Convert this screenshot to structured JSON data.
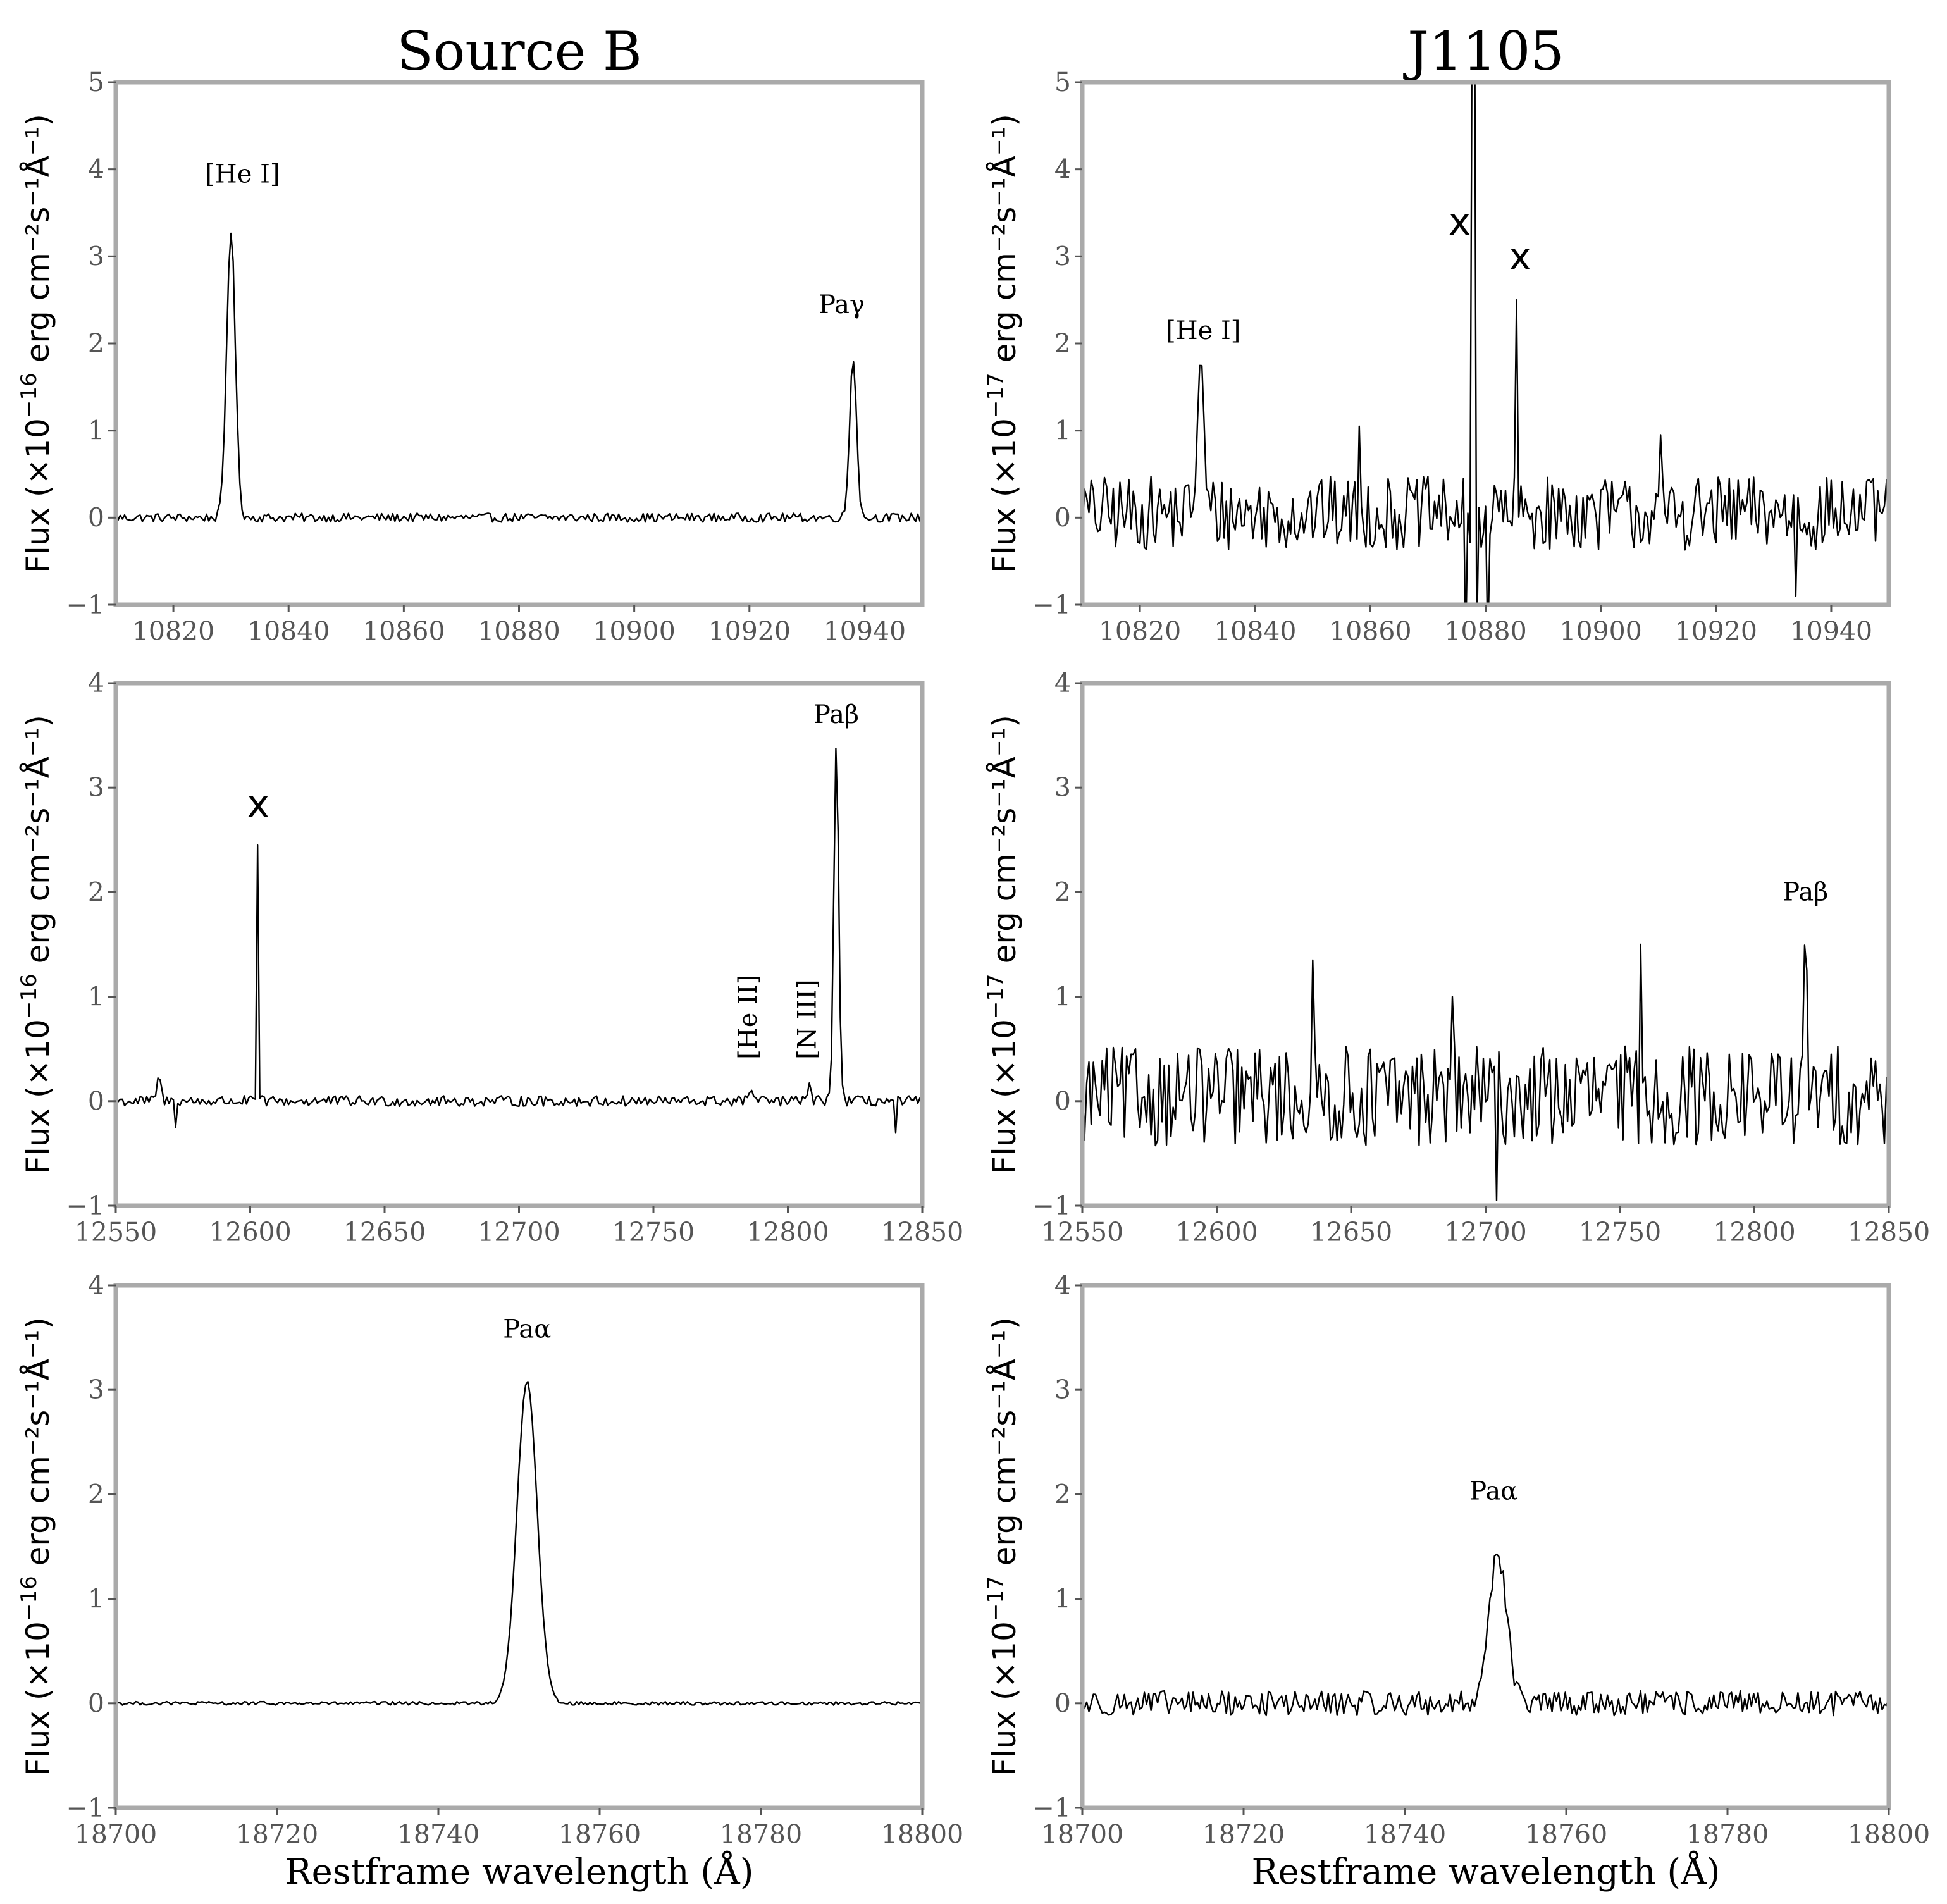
{
  "column_titles": [
    "Source B",
    "J1105"
  ],
  "xlabel": "Restframe wavelength (Å)",
  "ylabel_base": "Flux (×10",
  "ylabel_exp_left": "−16",
  "ylabel_exp_right": "−17",
  "ylabel_rest": " erg cm⁻²s⁻¹Å⁻¹)",
  "chart_data": [
    {
      "type": "line",
      "panel": "Source B, row 1",
      "xlim": [
        10810,
        10950
      ],
      "ylim": [
        -1,
        5
      ],
      "xticks": [
        10820,
        10840,
        10860,
        10880,
        10900,
        10920,
        10940
      ],
      "yticks": [
        -1,
        0,
        1,
        2,
        3,
        4,
        5
      ],
      "ylabel": "Flux (×10^-16 erg cm^-2 s^-1 Å^-1)",
      "baseline": 0.0,
      "noise": 0.03,
      "lines": [
        {
          "center": 10830.0,
          "amp": 3.3,
          "sigma": 0.75,
          "label": "[He I]",
          "label_x": 10832,
          "label_y": 3.85
        },
        {
          "center": 10938.0,
          "amp": 1.85,
          "sigma": 0.6,
          "label": "Paγ",
          "label_x": 10936,
          "label_y": 2.35
        }
      ],
      "spikes": [],
      "markers": []
    },
    {
      "type": "line",
      "panel": "J1105, row 1",
      "xlim": [
        10810,
        10950
      ],
      "ylim": [
        -1,
        5
      ],
      "xticks": [
        10820,
        10840,
        10860,
        10880,
        10900,
        10920,
        10940
      ],
      "yticks": [
        -1,
        0,
        1,
        2,
        3,
        4,
        5
      ],
      "ylabel": "Flux (×10^-17 erg cm^-2 s^-1 Å^-1)",
      "baseline": 0.05,
      "noise": 0.25,
      "lines": [
        {
          "center": 10830.5,
          "amp": 1.6,
          "sigma": 0.6,
          "label": "[He I]",
          "label_x": 10831,
          "label_y": 2.05
        }
      ],
      "spikes": [
        {
          "x": 10877.6,
          "y": 6.5
        },
        {
          "x": 10877.9,
          "y": 6.5
        },
        {
          "x": 10876.5,
          "y": -1.5
        },
        {
          "x": 10878.5,
          "y": -1.5
        },
        {
          "x": 10880.5,
          "y": -1.5
        },
        {
          "x": 10885.5,
          "y": 2.5
        },
        {
          "x": 10858.0,
          "y": 1.05
        },
        {
          "x": 10910.5,
          "y": 0.95
        },
        {
          "x": 10934.0,
          "y": -0.9
        }
      ],
      "markers": [
        {
          "label": "x",
          "x": 10875.5,
          "y": 3.25
        },
        {
          "label": "x",
          "x": 10886.0,
          "y": 2.85
        }
      ]
    },
    {
      "type": "line",
      "panel": "Source B, row 2",
      "xlim": [
        12550,
        12850
      ],
      "ylim": [
        -1,
        4
      ],
      "xticks": [
        12550,
        12600,
        12650,
        12700,
        12750,
        12800,
        12850
      ],
      "yticks": [
        -1,
        0,
        1,
        2,
        3,
        4
      ],
      "ylabel": "Flux (×10^-16 erg cm^-2 s^-1 Å^-1)",
      "baseline": 0.0,
      "noise": 0.03,
      "lines": [
        {
          "center": 12818.0,
          "amp": 3.42,
          "sigma": 0.9,
          "label": "Paβ",
          "label_x": 12818,
          "label_y": 3.62
        },
        {
          "center": 12808.0,
          "amp": 0.22,
          "sigma": 0.5,
          "label": "[N III]",
          "vertical": true,
          "label_x": 12807,
          "label_y": 0.4
        },
        {
          "center": 12786.0,
          "amp": 0.12,
          "sigma": 0.8,
          "label": "[He II]",
          "vertical": true,
          "label_x": 12785,
          "label_y": 0.4
        },
        {
          "center": 12566.0,
          "amp": 0.22,
          "sigma": 0.8
        }
      ],
      "spikes": [
        {
          "x": 12602.5,
          "y": 2.45
        },
        {
          "x": 12572.0,
          "y": -0.25
        },
        {
          "x": 12840.0,
          "y": -0.3
        }
      ],
      "markers": [
        {
          "label": "x",
          "x": 12603,
          "y": 2.72
        }
      ]
    },
    {
      "type": "line",
      "panel": "J1105, row 2",
      "xlim": [
        12550,
        12850
      ],
      "ylim": [
        -1,
        4
      ],
      "xticks": [
        12550,
        12600,
        12650,
        12700,
        12750,
        12800,
        12850
      ],
      "yticks": [
        -1,
        0,
        1,
        2,
        3,
        4
      ],
      "ylabel": "Flux (×10^-17 erg cm^-2 s^-1 Å^-1)",
      "baseline": 0.05,
      "noise": 0.28,
      "lines": [
        {
          "center": 12819.0,
          "amp": 1.2,
          "sigma": 0.6,
          "label": "Paβ",
          "label_x": 12819,
          "label_y": 1.92
        }
      ],
      "spikes": [
        {
          "x": 12636.0,
          "y": 1.35
        },
        {
          "x": 12758.0,
          "y": 1.5
        },
        {
          "x": 12704.0,
          "y": -0.95
        },
        {
          "x": 12688.0,
          "y": 1.0
        }
      ],
      "markers": []
    },
    {
      "type": "line",
      "panel": "Source B, row 3",
      "xlim": [
        18700,
        18800
      ],
      "ylim": [
        -1,
        4
      ],
      "xticks": [
        18700,
        18720,
        18740,
        18760,
        18780,
        18800
      ],
      "yticks": [
        -1,
        0,
        1,
        2,
        3,
        4
      ],
      "ylabel": "Flux (×10^-16 erg cm^-2 s^-1 Å^-1)",
      "baseline": 0.0,
      "noise": 0.01,
      "lines": [
        {
          "center": 18751.0,
          "amp": 3.08,
          "sigma": 1.25,
          "label": "Paα",
          "label_x": 18751,
          "label_y": 3.5
        }
      ],
      "spikes": [],
      "markers": []
    },
    {
      "type": "line",
      "panel": "J1105, row 3",
      "xlim": [
        18700,
        18800
      ],
      "ylim": [
        -1,
        4
      ],
      "xticks": [
        18700,
        18720,
        18740,
        18760,
        18780,
        18800
      ],
      "yticks": [
        -1,
        0,
        1,
        2,
        3,
        4
      ],
      "ylabel": "Flux (×10^-17 erg cm^-2 s^-1 Å^-1)",
      "baseline": 0.0,
      "noise": 0.07,
      "lines": [
        {
          "center": 18751.5,
          "amp": 1.45,
          "sigma": 1.1,
          "label": "Paα",
          "label_x": 18751,
          "label_y": 1.95
        }
      ],
      "spikes": [],
      "markers": []
    }
  ]
}
